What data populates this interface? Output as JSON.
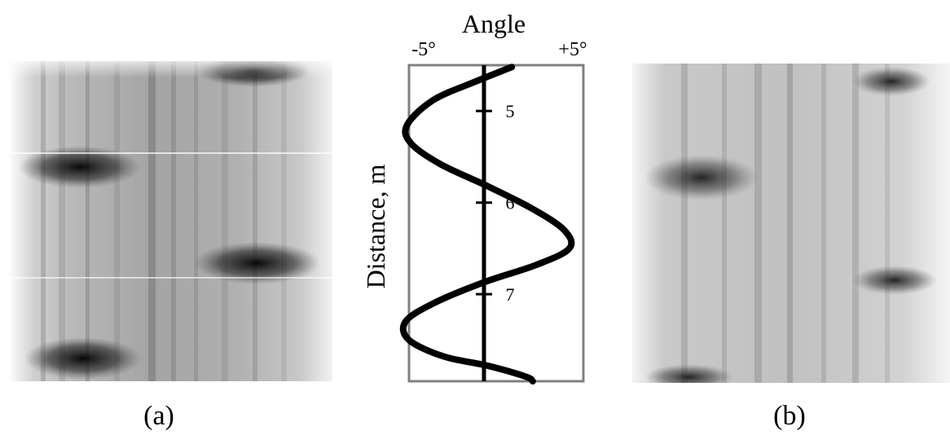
{
  "panels": {
    "left_caption": "(a)",
    "right_caption": "(b)"
  },
  "chart_data": {
    "type": "line",
    "title": "Angle",
    "xlabel": "Angle",
    "ylabel": "Distance, m",
    "x_tick_labels": [
      "-5°",
      "+5°"
    ],
    "xlim": [
      -5,
      5
    ],
    "ylim": [
      4.5,
      7.95
    ],
    "y_ticks": [
      5,
      6,
      7
    ],
    "y_tick_labels": [
      "5",
      "6",
      "7"
    ],
    "grid": false,
    "series": [
      {
        "x": [
          1.6,
          -0.5,
          -2.9,
          -4.4,
          -4.2,
          -2.5,
          0.2,
          2.8,
          4.6,
          4.9,
          3.0,
          0.0,
          -2.9,
          -4.5,
          -4.3,
          -2.3,
          0.2,
          2.4,
          2.8
        ],
        "y": [
          4.52,
          4.68,
          4.88,
          5.15,
          5.35,
          5.58,
          5.82,
          6.07,
          6.3,
          6.5,
          6.68,
          6.87,
          7.1,
          7.3,
          7.5,
          7.68,
          7.78,
          7.9,
          7.95
        ]
      }
    ],
    "center_line_x": 0
  },
  "colors": {
    "curve": "#000000",
    "frame": "#808080"
  }
}
